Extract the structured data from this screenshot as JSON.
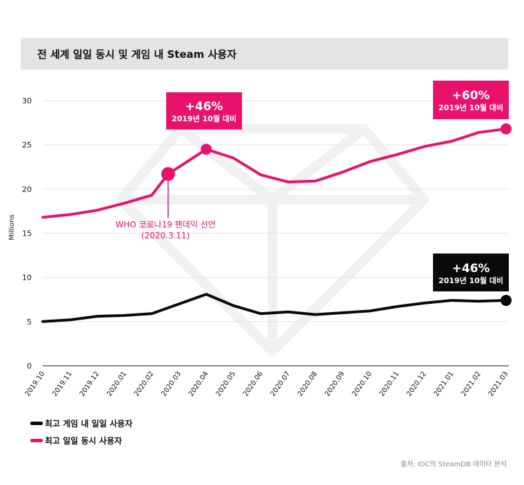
{
  "title": "전 세계 일일 동시 및 게임 내 Steam 사용자",
  "chart_data": {
    "type": "line",
    "ylabel": "Millions",
    "ylim": [
      0,
      30
    ],
    "yticks": [
      "0",
      "5",
      "10",
      "15",
      "20",
      "25",
      "30"
    ],
    "categories": [
      "2019.10",
      "2019.11",
      "2019.12",
      "2020.01",
      "2020.02",
      "2020.03",
      "2020.04",
      "2020.05",
      "2020.06",
      "2020.07",
      "2020.08",
      "2020.09",
      "2020.10",
      "2020.11",
      "2020.12",
      "2021.01",
      "2021.02",
      "2021.03"
    ],
    "series": [
      {
        "name": "최고 일일 동시 사용자",
        "color": "#e8126d",
        "x": [
          0,
          1,
          2,
          3,
          4,
          4.6,
          5,
          6,
          7,
          8,
          9,
          10,
          11,
          12,
          13,
          14,
          15,
          16,
          17
        ],
        "values": [
          16.8,
          17.1,
          17.6,
          18.4,
          19.3,
          21.7,
          22.5,
          24.5,
          23.5,
          21.6,
          20.8,
          20.9,
          21.9,
          23.1,
          23.9,
          24.8,
          25.4,
          26.4,
          26.8
        ]
      },
      {
        "name": "최고 게임 내 일일 사용자",
        "color": "#0a0a0a",
        "x": [
          0,
          1,
          2,
          3,
          4,
          5,
          6,
          7,
          8,
          9,
          10,
          11,
          12,
          13,
          14,
          15,
          16,
          17
        ],
        "values": [
          5.0,
          5.2,
          5.6,
          5.7,
          5.9,
          7.0,
          8.1,
          6.8,
          5.9,
          6.1,
          5.8,
          6.0,
          6.2,
          6.7,
          7.1,
          7.4,
          7.3,
          7.4
        ]
      }
    ],
    "markers": [
      {
        "series": 0,
        "x": 4.6,
        "value": 21.7
      },
      {
        "series": 0,
        "x": 6,
        "value": 24.5
      },
      {
        "series": 0,
        "x": 17,
        "value": 26.8
      },
      {
        "series": 1,
        "x": 17,
        "value": 7.4
      }
    ],
    "annotations": {
      "pink_peak": {
        "big": "+46%",
        "small": "2019년 10월 대비"
      },
      "pink_end": {
        "big": "+60%",
        "small": "2019년 10월 대비"
      },
      "black_end": {
        "big": "+46%",
        "small": "2019년 10월 대비"
      },
      "who_line1": "WHO 코로나19 팬데믹 선언",
      "who_line2": "(2020.3.11)"
    },
    "legend": [
      {
        "label": "최고 게임 내 일일 사용자",
        "color": "#0a0a0a"
      },
      {
        "label": "최고 일일 동시 사용자",
        "color": "#e8126d"
      }
    ]
  },
  "source": "출처: IDC의 SteamDB 데이터 분석"
}
